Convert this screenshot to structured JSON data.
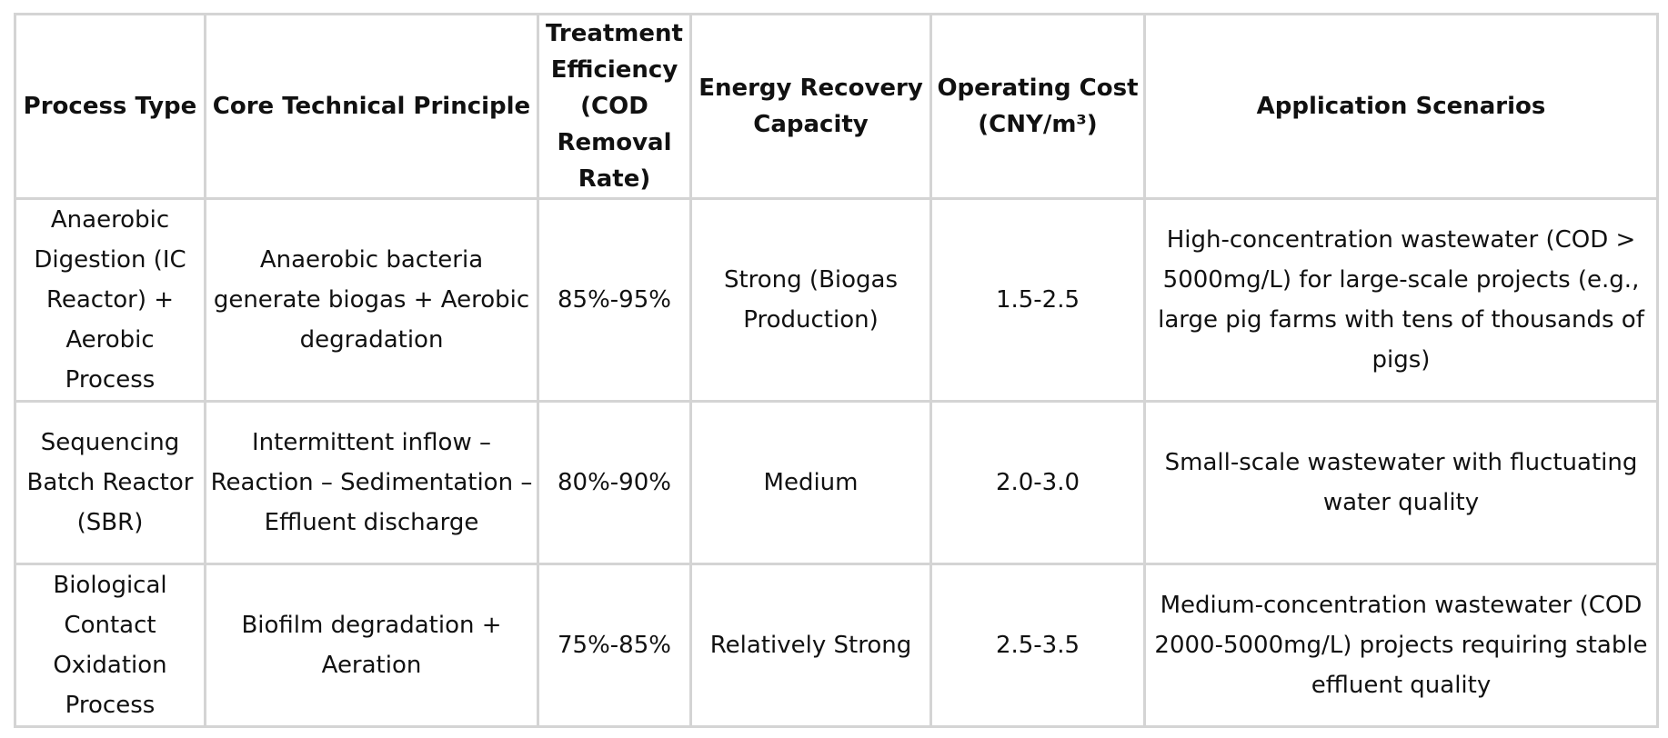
{
  "table": {
    "headers": [
      "Process Type",
      "Core Technical Principle",
      "Treatment Efficiency (COD Removal Rate)",
      "Energy Recovery Capacity",
      "Operating Cost (CNY/m³)",
      "Application Scenarios"
    ],
    "rows": [
      {
        "process_type": "Anaerobic Digestion (IC Reactor) + Aerobic Process",
        "principle": "Anaerobic bacteria generate biogas + Aerobic degradation",
        "efficiency": "85%-95%",
        "energy_recovery": "Strong (Biogas Production)",
        "operating_cost": "1.5-2.5",
        "application": "High-concentration wastewater (COD > 5000mg/L) for large-scale projects (e.g., large pig farms with tens of thousands of pigs)"
      },
      {
        "process_type": "Sequencing Batch Reactor (SBR)",
        "principle": "Intermittent inflow – Reaction – Sedimentation – Effluent discharge",
        "efficiency": "80%-90%",
        "energy_recovery": "Medium",
        "operating_cost": "2.0-3.0",
        "application": "Small-scale wastewater with fluctuating water quality"
      },
      {
        "process_type": "Biological Contact Oxidation Process",
        "principle": "Biofilm degradation + Aeration",
        "efficiency": "75%-85%",
        "energy_recovery": "Relatively Strong",
        "operating_cost": "2.5-3.5",
        "application": "Medium-concentration wastewater (COD 2000-5000mg/L) projects requiring stable effluent quality"
      }
    ]
  }
}
